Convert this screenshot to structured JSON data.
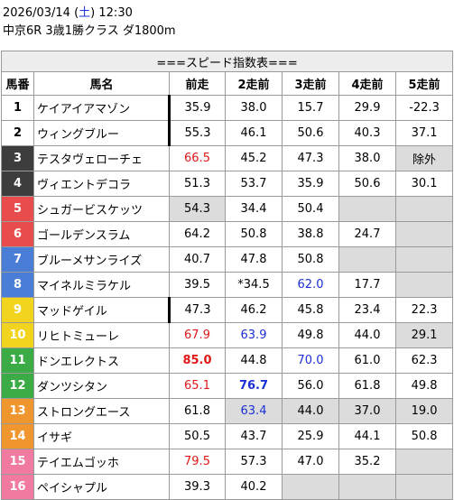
{
  "header": {
    "date": "2026/03/14",
    "day_open": " (",
    "day": "土",
    "day_close": ") ",
    "time": "12:30",
    "race": "中京6R 3歳1勝クラス ダ1800m"
  },
  "table": {
    "title": "===スピード指数表===",
    "columns": [
      "馬番",
      "馬名",
      "前走",
      "2走前",
      "3走前",
      "4走前",
      "5走前"
    ],
    "rows": [
      {
        "num": "1",
        "name": "ケイアイアマゾン",
        "num_bg": "#ffffff",
        "num_color": "#000000",
        "bar": true,
        "cells": [
          {
            "v": "35.9"
          },
          {
            "v": "38.0"
          },
          {
            "v": "15.7"
          },
          {
            "v": "29.9"
          },
          {
            "v": "-22.3"
          }
        ]
      },
      {
        "num": "2",
        "name": "ウィングブルー",
        "num_bg": "#ffffff",
        "num_color": "#000000",
        "bar": true,
        "cells": [
          {
            "v": "55.3"
          },
          {
            "v": "46.1"
          },
          {
            "v": "50.6"
          },
          {
            "v": "40.3"
          },
          {
            "v": "37.1"
          }
        ]
      },
      {
        "num": "3",
        "name": "テスタヴェローチェ",
        "num_bg": "#3d3d3d",
        "num_color": "#ffffff",
        "bar": false,
        "cells": [
          {
            "v": "66.5",
            "c": "red"
          },
          {
            "v": "45.2"
          },
          {
            "v": "47.3"
          },
          {
            "v": "38.0"
          },
          {
            "v": "除外",
            "grey": true
          }
        ]
      },
      {
        "num": "4",
        "name": "ヴィエントデコラ",
        "num_bg": "#3d3d3d",
        "num_color": "#ffffff",
        "bar": false,
        "cells": [
          {
            "v": "51.3"
          },
          {
            "v": "53.7"
          },
          {
            "v": "35.9"
          },
          {
            "v": "50.6"
          },
          {
            "v": "30.1"
          }
        ]
      },
      {
        "num": "5",
        "name": "シュガービスケッツ",
        "num_bg": "#e84c4c",
        "num_color": "#ffffff",
        "bar": false,
        "cells": [
          {
            "v": "54.3",
            "grey": true
          },
          {
            "v": "34.4"
          },
          {
            "v": "50.4"
          },
          {
            "v": "",
            "grey": true
          },
          {
            "v": "",
            "grey": true
          }
        ]
      },
      {
        "num": "6",
        "name": "ゴールデンスラム",
        "num_bg": "#e84c4c",
        "num_color": "#ffffff",
        "bar": false,
        "cells": [
          {
            "v": "64.2"
          },
          {
            "v": "50.8"
          },
          {
            "v": "38.8"
          },
          {
            "v": "24.7"
          },
          {
            "v": "",
            "grey": true
          }
        ]
      },
      {
        "num": "7",
        "name": "ブルーメサンライズ",
        "num_bg": "#4a7ed6",
        "num_color": "#ffffff",
        "bar": false,
        "cells": [
          {
            "v": "40.7"
          },
          {
            "v": "47.8"
          },
          {
            "v": "50.8"
          },
          {
            "v": "",
            "grey": true
          },
          {
            "v": "",
            "grey": true
          }
        ]
      },
      {
        "num": "8",
        "name": "マイネルミラケル",
        "num_bg": "#4a7ed6",
        "num_color": "#ffffff",
        "bar": false,
        "cells": [
          {
            "v": "39.5"
          },
          {
            "v": "*34.5"
          },
          {
            "v": "62.0",
            "c": "blue"
          },
          {
            "v": "17.7"
          },
          {
            "v": "",
            "grey": true
          }
        ]
      },
      {
        "num": "9",
        "name": "マッドゲイル",
        "num_bg": "#f2d41f",
        "num_color": "#ffffff",
        "bar": true,
        "cells": [
          {
            "v": "47.3"
          },
          {
            "v": "46.2"
          },
          {
            "v": "45.8"
          },
          {
            "v": "23.4"
          },
          {
            "v": "22.3"
          }
        ]
      },
      {
        "num": "10",
        "name": "リヒトミューレ",
        "num_bg": "#f2d41f",
        "num_color": "#ffffff",
        "bar": false,
        "cells": [
          {
            "v": "67.9",
            "c": "red"
          },
          {
            "v": "63.9",
            "c": "blue"
          },
          {
            "v": "49.8"
          },
          {
            "v": "44.0"
          },
          {
            "v": "29.1",
            "grey": true
          }
        ]
      },
      {
        "num": "11",
        "name": "ドンエレクトス",
        "num_bg": "#3aab45",
        "num_color": "#ffffff",
        "bar": false,
        "cells": [
          {
            "v": "85.0",
            "c": "red",
            "b": true
          },
          {
            "v": "44.8"
          },
          {
            "v": "70.0",
            "c": "blue"
          },
          {
            "v": "61.0"
          },
          {
            "v": "62.3"
          }
        ]
      },
      {
        "num": "12",
        "name": "ダンツシタン",
        "num_bg": "#3aab45",
        "num_color": "#ffffff",
        "bar": false,
        "cells": [
          {
            "v": "65.1",
            "c": "red"
          },
          {
            "v": "76.7",
            "c": "blue",
            "b": true
          },
          {
            "v": "56.0"
          },
          {
            "v": "61.8"
          },
          {
            "v": "49.8"
          }
        ]
      },
      {
        "num": "13",
        "name": "ストロングエース",
        "num_bg": "#f0962e",
        "num_color": "#ffffff",
        "bar": false,
        "cells": [
          {
            "v": "61.8"
          },
          {
            "v": "63.4",
            "c": "blue",
            "grey": true
          },
          {
            "v": "44.0",
            "grey": true
          },
          {
            "v": "37.0",
            "grey": true
          },
          {
            "v": "19.0",
            "grey": true
          }
        ]
      },
      {
        "num": "14",
        "name": "イサギ",
        "num_bg": "#f0962e",
        "num_color": "#ffffff",
        "bar": false,
        "cells": [
          {
            "v": "50.5"
          },
          {
            "v": "43.7"
          },
          {
            "v": "25.9"
          },
          {
            "v": "44.1"
          },
          {
            "v": "50.8"
          }
        ]
      },
      {
        "num": "15",
        "name": "テイエムゴッホ",
        "num_bg": "#f07aa0",
        "num_color": "#ffffff",
        "bar": false,
        "cells": [
          {
            "v": "79.5",
            "c": "red"
          },
          {
            "v": "57.3"
          },
          {
            "v": "47.0"
          },
          {
            "v": "35.2"
          },
          {
            "v": "",
            "grey": true
          }
        ]
      },
      {
        "num": "16",
        "name": "ペイシャプル",
        "num_bg": "#f07aa0",
        "num_color": "#ffffff",
        "bar": false,
        "cells": [
          {
            "v": "39.3"
          },
          {
            "v": "40.2"
          },
          {
            "v": "",
            "grey": true
          },
          {
            "v": "",
            "grey": true
          },
          {
            "v": "",
            "grey": true
          }
        ]
      }
    ]
  }
}
